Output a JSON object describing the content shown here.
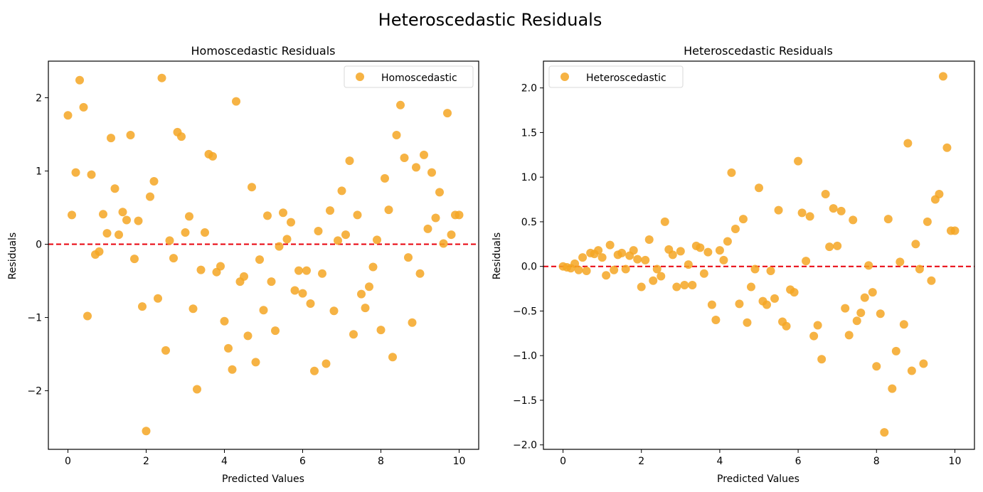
{
  "figure": {
    "suptitle": "Heteroscedastic Residuals"
  },
  "colors": {
    "marker": "#f5a623",
    "zero_line": "#e8000b"
  },
  "chart_data": [
    {
      "type": "scatter",
      "title": "Homoscedastic Residuals",
      "xlabel": "Predicted Values",
      "ylabel": "Residuals",
      "xlim": [
        -0.5,
        10.5
      ],
      "ylim": [
        -2.8,
        2.5
      ],
      "xticks": [
        0,
        2,
        4,
        6,
        8,
        10
      ],
      "yticks": [
        -2,
        -1,
        0,
        1,
        2
      ],
      "xtick_labels": [
        "0",
        "2",
        "4",
        "6",
        "8",
        "10"
      ],
      "ytick_labels": [
        "−2",
        "−1",
        "0",
        "1",
        "2"
      ],
      "hline": 0,
      "legend": "upper right",
      "series": [
        {
          "name": "Homoscedastic",
          "x": [
            0,
            0.1,
            0.2,
            0.3,
            0.4,
            0.5,
            0.6,
            0.7,
            0.8,
            0.9,
            1.0,
            1.1,
            1.2,
            1.3,
            1.4,
            1.5,
            1.6,
            1.7,
            1.8,
            1.9,
            2.0,
            2.1,
            2.2,
            2.3,
            2.4,
            2.5,
            2.6,
            2.7,
            2.8,
            2.9,
            3.0,
            3.1,
            3.2,
            3.3,
            3.4,
            3.5,
            3.6,
            3.7,
            3.8,
            3.9,
            4.0,
            4.1,
            4.2,
            4.3,
            4.4,
            4.5,
            4.6,
            4.7,
            4.8,
            4.9,
            5.0,
            5.1,
            5.2,
            5.3,
            5.4,
            5.5,
            5.6,
            5.7,
            5.8,
            5.9,
            6.0,
            6.1,
            6.2,
            6.3,
            6.4,
            6.5,
            6.6,
            6.7,
            6.8,
            6.9,
            7.0,
            7.1,
            7.2,
            7.3,
            7.4,
            7.5,
            7.6,
            7.7,
            7.8,
            7.9,
            8.0,
            8.1,
            8.2,
            8.3,
            8.4,
            8.5,
            8.6,
            8.7,
            8.8,
            8.9,
            9.0,
            9.1,
            9.2,
            9.3,
            9.4,
            9.5,
            9.6,
            9.7,
            9.8,
            9.9,
            10.0
          ],
          "y": [
            1.76,
            0.4,
            0.98,
            2.24,
            1.87,
            -0.98,
            0.95,
            -0.14,
            -0.1,
            0.41,
            0.15,
            1.45,
            0.76,
            0.13,
            0.44,
            0.33,
            1.49,
            -0.2,
            0.32,
            -0.85,
            -2.55,
            0.65,
            0.86,
            -0.74,
            2.27,
            -1.45,
            0.05,
            -0.19,
            1.53,
            1.47,
            0.16,
            0.38,
            -0.88,
            -1.98,
            -0.35,
            0.16,
            1.23,
            1.2,
            -0.38,
            -0.3,
            -1.05,
            -1.42,
            -1.71,
            1.95,
            -0.51,
            -0.44,
            -1.25,
            0.78,
            -1.61,
            -0.21,
            -0.9,
            0.39,
            -0.51,
            -1.18,
            -0.03,
            0.43,
            0.07,
            0.3,
            -0.63,
            -0.36,
            -0.67,
            -0.36,
            -0.81,
            -1.73,
            0.18,
            -0.4,
            -1.63,
            0.46,
            -0.91,
            0.05,
            0.73,
            0.13,
            1.14,
            -1.23,
            0.4,
            -0.68,
            -0.87,
            -0.58,
            -0.31,
            0.06,
            -1.17,
            0.9,
            0.47,
            -1.54,
            1.49,
            1.9,
            1.18,
            -0.18,
            -1.07,
            1.05,
            -0.4,
            1.22,
            0.21,
            0.98,
            0.36,
            0.71,
            0.01,
            1.79,
            0.13,
            0.4,
            0.4
          ]
        }
      ]
    },
    {
      "type": "scatter",
      "title": "Heteroscedastic Residuals",
      "xlabel": "Predicted Values",
      "ylabel": "Residuals",
      "xlim": [
        -0.5,
        10.5
      ],
      "ylim": [
        -2.05,
        2.3
      ],
      "xticks": [
        0,
        2,
        4,
        6,
        8,
        10
      ],
      "yticks": [
        -2.0,
        -1.5,
        -1.0,
        -0.5,
        0.0,
        0.5,
        1.0,
        1.5,
        2.0
      ],
      "xtick_labels": [
        "0",
        "2",
        "4",
        "6",
        "8",
        "10"
      ],
      "ytick_labels": [
        "−2.0",
        "−1.5",
        "−1.0",
        "−0.5",
        "0.0",
        "0.5",
        "1.0",
        "1.5",
        "2.0"
      ],
      "hline": 0,
      "legend": "upper left",
      "series": [
        {
          "name": "Heteroscedastic",
          "x": [
            0,
            0.1,
            0.2,
            0.3,
            0.4,
            0.5,
            0.6,
            0.7,
            0.8,
            0.9,
            1.0,
            1.1,
            1.2,
            1.3,
            1.4,
            1.5,
            1.6,
            1.7,
            1.8,
            1.9,
            2.0,
            2.1,
            2.2,
            2.3,
            2.4,
            2.5,
            2.6,
            2.7,
            2.8,
            2.9,
            3.0,
            3.1,
            3.2,
            3.3,
            3.4,
            3.5,
            3.6,
            3.7,
            3.8,
            3.9,
            4.0,
            4.1,
            4.2,
            4.3,
            4.4,
            4.5,
            4.6,
            4.7,
            4.8,
            4.9,
            5.0,
            5.1,
            5.2,
            5.3,
            5.4,
            5.5,
            5.6,
            5.7,
            5.8,
            5.9,
            6.0,
            6.1,
            6.2,
            6.3,
            6.4,
            6.5,
            6.6,
            6.7,
            6.8,
            6.9,
            7.0,
            7.1,
            7.2,
            7.3,
            7.4,
            7.5,
            7.6,
            7.7,
            7.8,
            7.9,
            8.0,
            8.1,
            8.2,
            8.3,
            8.4,
            8.5,
            8.6,
            8.7,
            8.8,
            8.9,
            9.0,
            9.1,
            9.2,
            9.3,
            9.4,
            9.5,
            9.6,
            9.7,
            9.8,
            9.9,
            10.0
          ],
          "y": [
            0.0,
            -0.01,
            -0.02,
            0.03,
            -0.04,
            0.1,
            -0.05,
            0.15,
            0.14,
            0.18,
            0.1,
            -0.1,
            0.24,
            -0.04,
            0.13,
            0.15,
            -0.03,
            0.12,
            0.18,
            0.08,
            -0.23,
            0.07,
            0.3,
            -0.16,
            -0.03,
            -0.11,
            0.5,
            0.19,
            0.13,
            -0.23,
            0.17,
            -0.21,
            0.02,
            -0.21,
            0.23,
            0.21,
            -0.08,
            0.16,
            -0.43,
            -0.6,
            0.18,
            0.07,
            0.28,
            1.05,
            0.42,
            -0.42,
            0.53,
            -0.63,
            -0.23,
            -0.03,
            0.88,
            -0.39,
            -0.43,
            -0.05,
            -0.36,
            0.63,
            -0.62,
            -0.67,
            -0.26,
            -0.29,
            1.18,
            0.6,
            0.06,
            0.56,
            -0.78,
            -0.66,
            -1.04,
            0.81,
            0.22,
            0.65,
            0.23,
            0.62,
            -0.47,
            -0.77,
            0.52,
            -0.61,
            -0.52,
            -0.35,
            0.01,
            -0.29,
            -1.12,
            -0.53,
            -1.86,
            0.53,
            -1.37,
            -0.95,
            0.05,
            -0.65,
            1.38,
            -1.17,
            0.25,
            -0.03,
            -1.09,
            0.5,
            -0.16,
            0.75,
            0.81,
            2.13,
            1.33,
            0.4,
            0.4
          ]
        }
      ]
    }
  ]
}
